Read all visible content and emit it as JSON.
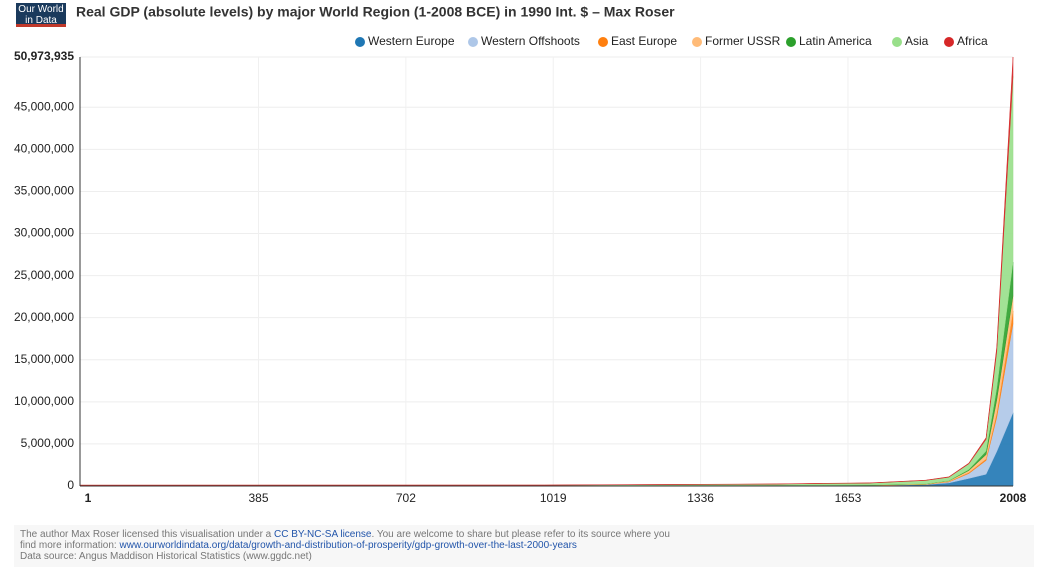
{
  "logo": "Our World in Data",
  "footer": {
    "license_pre": "The author Max Roser licensed this visualisation under a",
    "license_link": "CC BY-NC-SA license",
    "license_post": ". You are welcome to share but please refer to its source where you",
    "more_pre": "find more information:",
    "more_link": "www.ourworldindata.org/data/growth-and-distribution-of-prosperity/gdp-growth-over-the-last-2000-years",
    "source": "Data source: Angus Maddison Historical Statistics (www.ggdc.net)"
  },
  "chart_data": {
    "type": "stacked-area",
    "title": "Real GDP (absolute levels) by major World Region (1-2008 BCE) in 1990 Int. $ – Max Roser",
    "x": [
      1,
      1000,
      1500,
      1600,
      1700,
      1820,
      1870,
      1913,
      1950,
      1973,
      2008
    ],
    "series": [
      {
        "name": "Western Europe",
        "color": "#1f77b4",
        "values": [
          14433,
          10165,
          44162,
          65640,
          81302,
          160145,
          367588,
          902341,
          1396188,
          4096456,
          8698000
        ]
      },
      {
        "name": "Western Offshoots",
        "color": "#aec7e8",
        "values": [
          468,
          784,
          1120,
          1134,
          1103,
          13548,
          111565,
          582941,
          1635490,
          4058289,
          10600000
        ]
      },
      {
        "name": "East Europe",
        "color": "#ff7f0e",
        "values": [
          1956,
          2600,
          6696,
          9289,
          11393,
          23149,
          45448,
          121559,
          185023,
          550757,
          1500000
        ]
      },
      {
        "name": "Former USSR",
        "color": "#ffbb78",
        "values": [
          1560,
          2840,
          8458,
          11426,
          16196,
          37678,
          83646,
          232351,
          510243,
          1513070,
          1800000
        ]
      },
      {
        "name": "Latin America",
        "color": "#2ca02c",
        "values": [
          2240,
          4560,
          7288,
          3763,
          6346,
          14921,
          27505,
          119883,
          415907,
          1389480,
          4000000
        ]
      },
      {
        "name": "Asia",
        "color": "#98df8a",
        "values": [
          77000,
          82118,
          161000,
          207000,
          230000,
          412000,
          410000,
          680000,
          1390000,
          4330000,
          22076000
        ]
      },
      {
        "name": "Africa",
        "color": "#d62728",
        "values": [
          8030,
          13720,
          19283,
          23349,
          25692,
          31266,
          45234,
          79486,
          203131,
          549993,
          2300000
        ]
      }
    ],
    "xlim": [
      1,
      2008
    ],
    "xticks": [
      1,
      385,
      702,
      1019,
      1336,
      1653,
      2008
    ],
    "ylim": [
      0,
      50973935
    ],
    "yticks": [
      0,
      {
        "value": 5000000,
        "label": "5,000,000"
      },
      {
        "value": 10000000,
        "label": "10,000,000"
      },
      {
        "value": 15000000,
        "label": "15,000,000"
      },
      {
        "value": 20000000,
        "label": "20,000,000"
      },
      {
        "value": 25000000,
        "label": "25,000,000"
      },
      {
        "value": 30000000,
        "label": "30,000,000"
      },
      {
        "value": 35000000,
        "label": "35,000,000"
      },
      {
        "value": 40000000,
        "label": "40,000,000"
      },
      {
        "value": 45000000,
        "label": "45,000,000"
      },
      {
        "value": 50973935,
        "label": "50,973,935"
      }
    ],
    "grid": true
  }
}
